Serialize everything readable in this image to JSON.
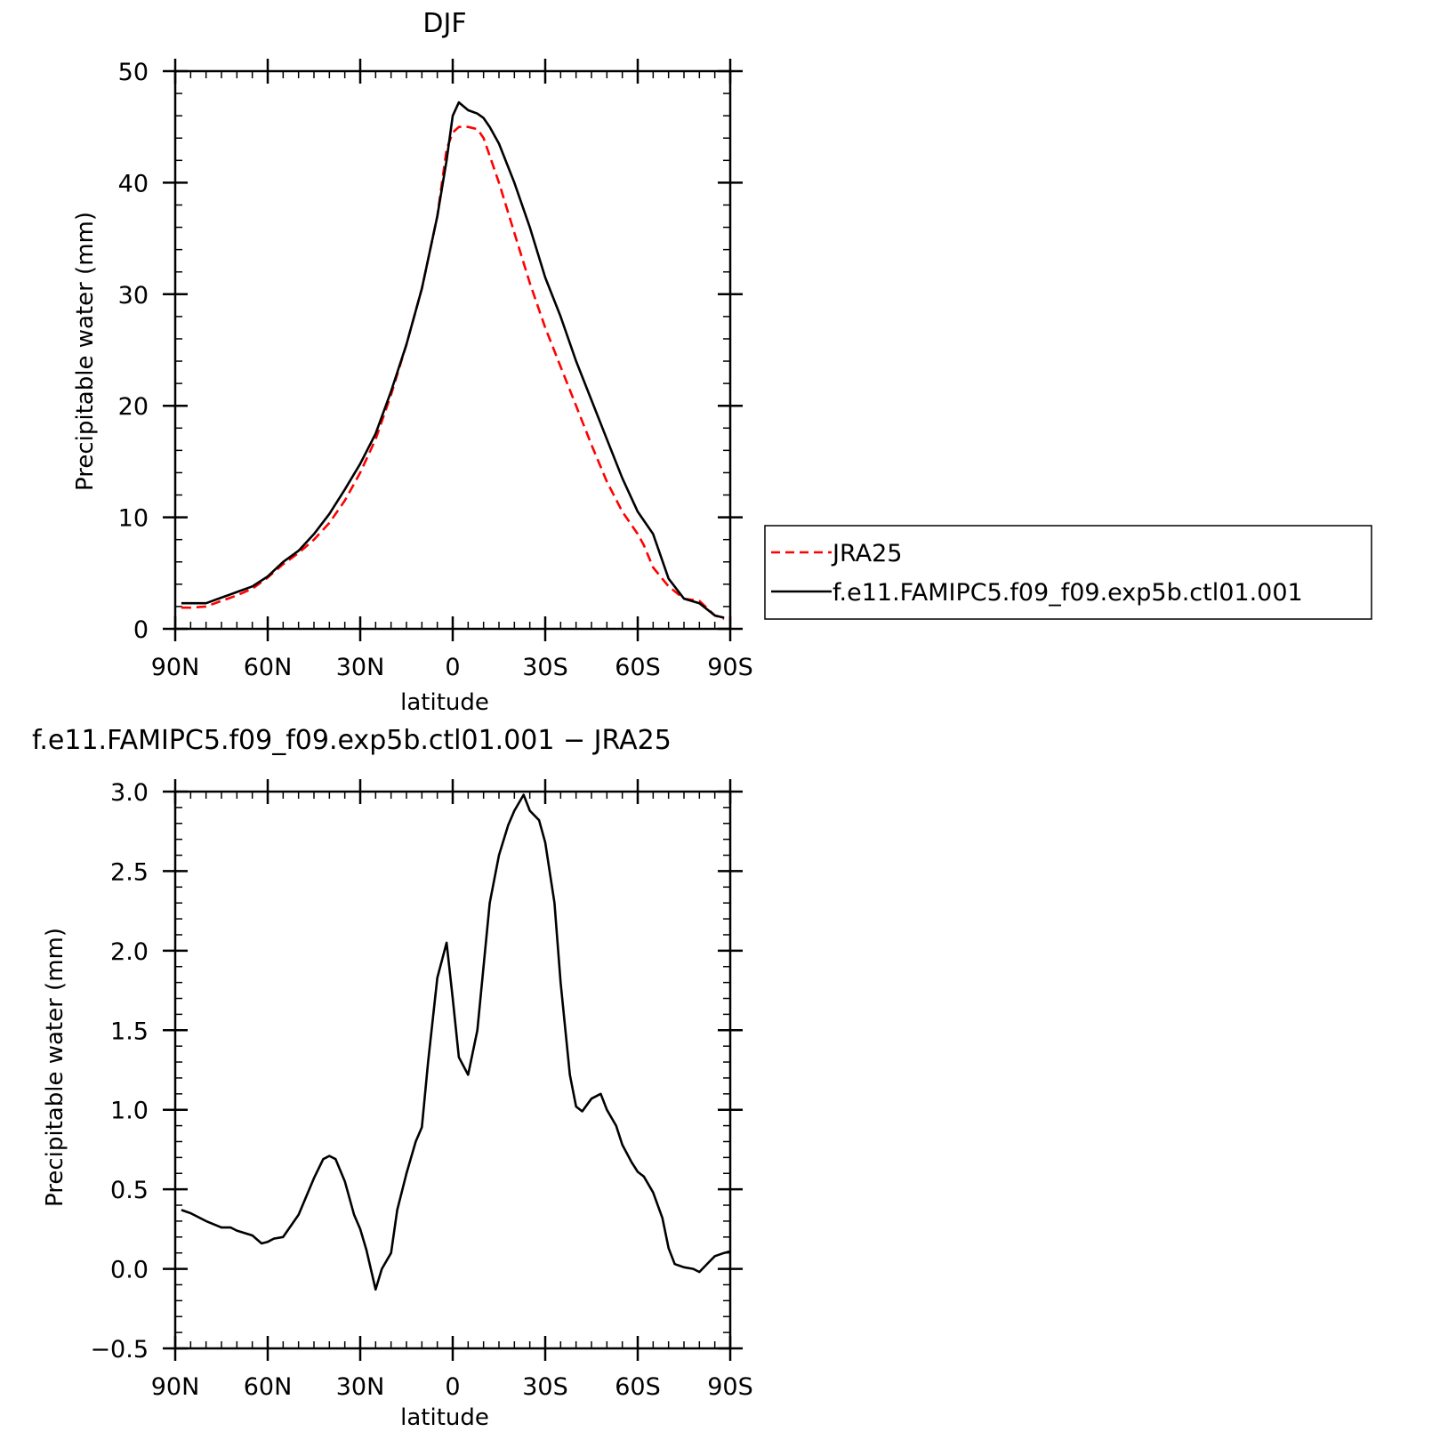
{
  "chart_data": [
    {
      "type": "line",
      "title": "DJF",
      "xlabel": "latitude",
      "ylabel": "Precipitable water (mm)",
      "xlim": [
        90,
        -90
      ],
      "ylim": [
        0,
        50
      ],
      "xticks": [
        90,
        60,
        30,
        0,
        -30,
        -60,
        -90
      ],
      "xtick_labels": [
        "90N",
        "60N",
        "30N",
        "0",
        "30S",
        "60S",
        "90S"
      ],
      "yticks": [
        0,
        10,
        20,
        30,
        40,
        50
      ],
      "ytick_labels": [
        "0",
        "10",
        "20",
        "30",
        "40",
        "50"
      ],
      "legend_position": "right",
      "series": [
        {
          "name": "JRA25",
          "color": "#ff0000",
          "dash": "dashed",
          "points": [
            [
              88,
              1.9
            ],
            [
              85,
              1.9
            ],
            [
              80,
              2.0
            ],
            [
              75,
              2.5
            ],
            [
              70,
              3.0
            ],
            [
              65,
              3.6
            ],
            [
              60,
              4.6
            ],
            [
              55,
              5.8
            ],
            [
              50,
              6.8
            ],
            [
              45,
              8.0
            ],
            [
              40,
              9.5
            ],
            [
              35,
              11.5
            ],
            [
              30,
              14.0
            ],
            [
              25,
              17.0
            ],
            [
              20,
              21.0
            ],
            [
              15,
              25.5
            ],
            [
              10,
              30.5
            ],
            [
              5,
              37.0
            ],
            [
              2,
              43.0
            ],
            [
              0,
              44.5
            ],
            [
              -2,
              45.0
            ],
            [
              -5,
              45.0
            ],
            [
              -8,
              44.8
            ],
            [
              -10,
              44.0
            ],
            [
              -15,
              40.0
            ],
            [
              -20,
              35.5
            ],
            [
              -25,
              31.0
            ],
            [
              -30,
              27.0
            ],
            [
              -35,
              23.5
            ],
            [
              -40,
              20.0
            ],
            [
              -45,
              16.5
            ],
            [
              -50,
              13.2
            ],
            [
              -55,
              10.5
            ],
            [
              -60,
              8.5
            ],
            [
              -62,
              7.5
            ],
            [
              -65,
              5.5
            ],
            [
              -70,
              3.8
            ],
            [
              -75,
              2.7
            ],
            [
              -80,
              2.5
            ],
            [
              -85,
              1.2
            ],
            [
              -88,
              0.9
            ]
          ]
        },
        {
          "name": "f.e11.FAMIPC5.f09_f09.exp5b.ctl01.001",
          "color": "#000000",
          "dash": "solid",
          "points": [
            [
              88,
              2.3
            ],
            [
              85,
              2.3
            ],
            [
              80,
              2.3
            ],
            [
              75,
              2.8
            ],
            [
              70,
              3.3
            ],
            [
              65,
              3.8
            ],
            [
              60,
              4.7
            ],
            [
              55,
              6.0
            ],
            [
              50,
              7.0
            ],
            [
              45,
              8.5
            ],
            [
              40,
              10.3
            ],
            [
              35,
              12.5
            ],
            [
              30,
              14.8
            ],
            [
              25,
              17.5
            ],
            [
              20,
              21.3
            ],
            [
              15,
              25.5
            ],
            [
              10,
              30.5
            ],
            [
              5,
              37.0
            ],
            [
              2,
              42.0
            ],
            [
              0,
              46.0
            ],
            [
              -2,
              47.2
            ],
            [
              -5,
              46.5
            ],
            [
              -8,
              46.2
            ],
            [
              -10,
              45.8
            ],
            [
              -12,
              45.0
            ],
            [
              -15,
              43.5
            ],
            [
              -20,
              40.0
            ],
            [
              -25,
              36.0
            ],
            [
              -30,
              31.5
            ],
            [
              -35,
              28.0
            ],
            [
              -40,
              24.0
            ],
            [
              -45,
              20.5
            ],
            [
              -50,
              17.0
            ],
            [
              -55,
              13.5
            ],
            [
              -60,
              10.5
            ],
            [
              -65,
              8.5
            ],
            [
              -70,
              4.5
            ],
            [
              -75,
              2.7
            ],
            [
              -80,
              2.3
            ],
            [
              -85,
              1.2
            ],
            [
              -88,
              1.0
            ]
          ]
        }
      ]
    },
    {
      "type": "line",
      "title": "f.e11.FAMIPC5.f09_f09.exp5b.ctl01.001 − JRA25",
      "xlabel": "latitude",
      "ylabel": "Precipitable water (mm)",
      "xlim": [
        90,
        -90
      ],
      "ylim": [
        -0.5,
        3.0
      ],
      "xticks": [
        90,
        60,
        30,
        0,
        -30,
        -60,
        -90
      ],
      "xtick_labels": [
        "90N",
        "60N",
        "30N",
        "0",
        "30S",
        "60S",
        "90S"
      ],
      "yticks": [
        -0.5,
        0.0,
        0.5,
        1.0,
        1.5,
        2.0,
        2.5,
        3.0
      ],
      "ytick_labels": [
        "−0.5",
        "0.0",
        "0.5",
        "1.0",
        "1.5",
        "2.0",
        "2.5",
        "3.0"
      ],
      "series": [
        {
          "color": "#000000",
          "dash": "solid",
          "points": [
            [
              88,
              0.37
            ],
            [
              85,
              0.35
            ],
            [
              80,
              0.3
            ],
            [
              75,
              0.26
            ],
            [
              72,
              0.26
            ],
            [
              70,
              0.24
            ],
            [
              65,
              0.21
            ],
            [
              62,
              0.16
            ],
            [
              60,
              0.17
            ],
            [
              58,
              0.19
            ],
            [
              55,
              0.2
            ],
            [
              50,
              0.34
            ],
            [
              45,
              0.57
            ],
            [
              42,
              0.69
            ],
            [
              40,
              0.71
            ],
            [
              38,
              0.69
            ],
            [
              35,
              0.55
            ],
            [
              32,
              0.34
            ],
            [
              30,
              0.25
            ],
            [
              28,
              0.12
            ],
            [
              25,
              -0.13
            ],
            [
              23,
              0.0
            ],
            [
              20,
              0.1
            ],
            [
              18,
              0.37
            ],
            [
              15,
              0.6
            ],
            [
              12,
              0.8
            ],
            [
              10,
              0.89
            ],
            [
              8,
              1.3
            ],
            [
              5,
              1.83
            ],
            [
              2,
              2.05
            ],
            [
              0,
              1.7
            ],
            [
              -2,
              1.33
            ],
            [
              -5,
              1.22
            ],
            [
              -8,
              1.5
            ],
            [
              -12,
              2.3
            ],
            [
              -15,
              2.6
            ],
            [
              -18,
              2.79
            ],
            [
              -20,
              2.88
            ],
            [
              -23,
              2.98
            ],
            [
              -25,
              2.88
            ],
            [
              -28,
              2.82
            ],
            [
              -30,
              2.68
            ],
            [
              -33,
              2.3
            ],
            [
              -35,
              1.8
            ],
            [
              -38,
              1.22
            ],
            [
              -40,
              1.02
            ],
            [
              -42,
              0.99
            ],
            [
              -45,
              1.07
            ],
            [
              -48,
              1.1
            ],
            [
              -50,
              1.0
            ],
            [
              -53,
              0.9
            ],
            [
              -55,
              0.78
            ],
            [
              -58,
              0.67
            ],
            [
              -60,
              0.61
            ],
            [
              -62,
              0.58
            ],
            [
              -65,
              0.48
            ],
            [
              -68,
              0.32
            ],
            [
              -70,
              0.13
            ],
            [
              -72,
              0.03
            ],
            [
              -75,
              0.01
            ],
            [
              -78,
              0.0
            ],
            [
              -80,
              -0.02
            ],
            [
              -83,
              0.04
            ],
            [
              -85,
              0.08
            ],
            [
              -88,
              0.1
            ],
            [
              -90,
              0.11
            ]
          ]
        }
      ]
    }
  ]
}
